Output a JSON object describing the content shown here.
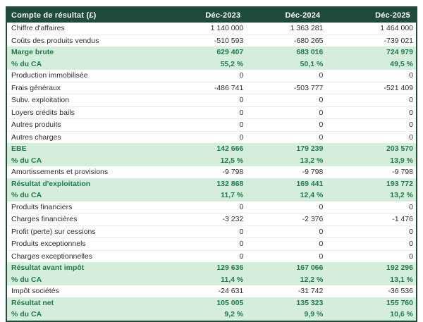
{
  "table": {
    "title": "Compte de résultat (£)",
    "columns": [
      "Déc-2023",
      "Déc-2024",
      "Déc-2025"
    ],
    "rows": [
      {
        "label": "Chiffre d'affaires",
        "type": "plain",
        "values": [
          "1 140 000",
          "1 363 281",
          "1 464 000"
        ]
      },
      {
        "label": "Coûts des produits vendus",
        "type": "plain",
        "values": [
          "-510 593",
          "-680 265",
          "-739 021"
        ]
      },
      {
        "label": "Marge brute",
        "type": "hl",
        "values": [
          "629 407",
          "683 016",
          "724 979"
        ]
      },
      {
        "label": "% du CA",
        "type": "hl",
        "values": [
          "55,2 %",
          "50,1 %",
          "49,5 %"
        ]
      },
      {
        "label": "Production immobilisée",
        "type": "plain",
        "values": [
          "0",
          "0",
          "0"
        ]
      },
      {
        "label": "Frais généraux",
        "type": "plain",
        "values": [
          "-486 741",
          "-503 777",
          "-521 409"
        ]
      },
      {
        "label": "Subv. exploitation",
        "type": "plain",
        "values": [
          "0",
          "0",
          "0"
        ]
      },
      {
        "label": "Loyers crédits bails",
        "type": "plain",
        "values": [
          "0",
          "0",
          "0"
        ]
      },
      {
        "label": "Autres produits",
        "type": "plain",
        "values": [
          "0",
          "0",
          "0"
        ]
      },
      {
        "label": "Autres charges",
        "type": "plain",
        "values": [
          "0",
          "0",
          "0"
        ]
      },
      {
        "label": "EBE",
        "type": "hl",
        "values": [
          "142 666",
          "179 239",
          "203 570"
        ]
      },
      {
        "label": "% du CA",
        "type": "hl",
        "values": [
          "12,5 %",
          "13,2 %",
          "13,9 %"
        ]
      },
      {
        "label": "Amortissements et provisions",
        "type": "plain",
        "values": [
          "-9 798",
          "-9 798",
          "-9 798"
        ]
      },
      {
        "label": "Résultat d'exploitation",
        "type": "hl",
        "values": [
          "132 868",
          "169 441",
          "193 772"
        ]
      },
      {
        "label": "% du CA",
        "type": "hl",
        "values": [
          "11,7 %",
          "12,4 %",
          "13,2 %"
        ]
      },
      {
        "label": "Produits financiers",
        "type": "plain",
        "values": [
          "0",
          "0",
          "0"
        ]
      },
      {
        "label": "Charges financières",
        "type": "plain",
        "values": [
          "-3 232",
          "-2 376",
          "-1 476"
        ]
      },
      {
        "label": "Profit (perte) sur cessions",
        "type": "plain",
        "values": [
          "0",
          "0",
          "0"
        ]
      },
      {
        "label": "Produits exceptionnels",
        "type": "plain",
        "values": [
          "0",
          "0",
          "0"
        ]
      },
      {
        "label": "Charges exceptionnelles",
        "type": "plain",
        "values": [
          "0",
          "0",
          "0"
        ]
      },
      {
        "label": "Résultat avant impôt",
        "type": "hl",
        "values": [
          "129 636",
          "167 066",
          "192 296"
        ]
      },
      {
        "label": "% du CA",
        "type": "hl",
        "values": [
          "11,4 %",
          "12,2 %",
          "13,1 %"
        ]
      },
      {
        "label": "Impôt sociétés",
        "type": "plain",
        "values": [
          "-24 631",
          "-31 742",
          "-36 536"
        ]
      },
      {
        "label": "Résultat net",
        "type": "hl",
        "values": [
          "105 005",
          "135 323",
          "155 760"
        ]
      },
      {
        "label": "% du CA",
        "type": "hl",
        "values": [
          "9,2 %",
          "9,9 %",
          "10,6 %"
        ]
      }
    ]
  },
  "colors": {
    "header_bg": "#1E4B3A",
    "header_text": "#FFFFFF",
    "highlight_bg": "#D5EDDB",
    "highlight_text": "#1E7B4F",
    "body_text": "#2E2E2E",
    "row_separator": "#ECECEC"
  }
}
